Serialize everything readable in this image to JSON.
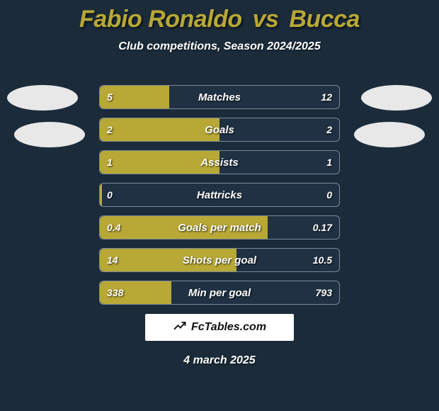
{
  "title": {
    "player1": "Fabio Ronaldo",
    "vs": "vs",
    "player2": "Bucca",
    "color": "#b8a835"
  },
  "subtitle": "Club competitions, Season 2024/2025",
  "background_color": "#1b2b3a",
  "bar_border_color": "#7b8a99",
  "bar_background_color": "#1f3142",
  "player1_fill_color": "#b8a835",
  "player2_fill_color": "#1f3142",
  "text_color": "#ffffff",
  "brand": {
    "text": "FcTables.com",
    "background": "#ffffff",
    "text_color": "#111111"
  },
  "date": "4 march 2025",
  "stats": [
    {
      "label": "Matches",
      "left_val": "5",
      "right_val": "12",
      "left_pct": 29,
      "right_pct": 0
    },
    {
      "label": "Goals",
      "left_val": "2",
      "right_val": "2",
      "left_pct": 50,
      "right_pct": 0
    },
    {
      "label": "Assists",
      "left_val": "1",
      "right_val": "1",
      "left_pct": 50,
      "right_pct": 0
    },
    {
      "label": "Hattricks",
      "left_val": "0",
      "right_val": "0",
      "left_pct": 1,
      "right_pct": 0
    },
    {
      "label": "Goals per match",
      "left_val": "0.4",
      "right_val": "0.17",
      "left_pct": 70,
      "right_pct": 0
    },
    {
      "label": "Shots per goal",
      "left_val": "14",
      "right_val": "10.5",
      "left_pct": 57,
      "right_pct": 0
    },
    {
      "label": "Min per goal",
      "left_val": "338",
      "right_val": "793",
      "left_pct": 30,
      "right_pct": 0
    }
  ]
}
